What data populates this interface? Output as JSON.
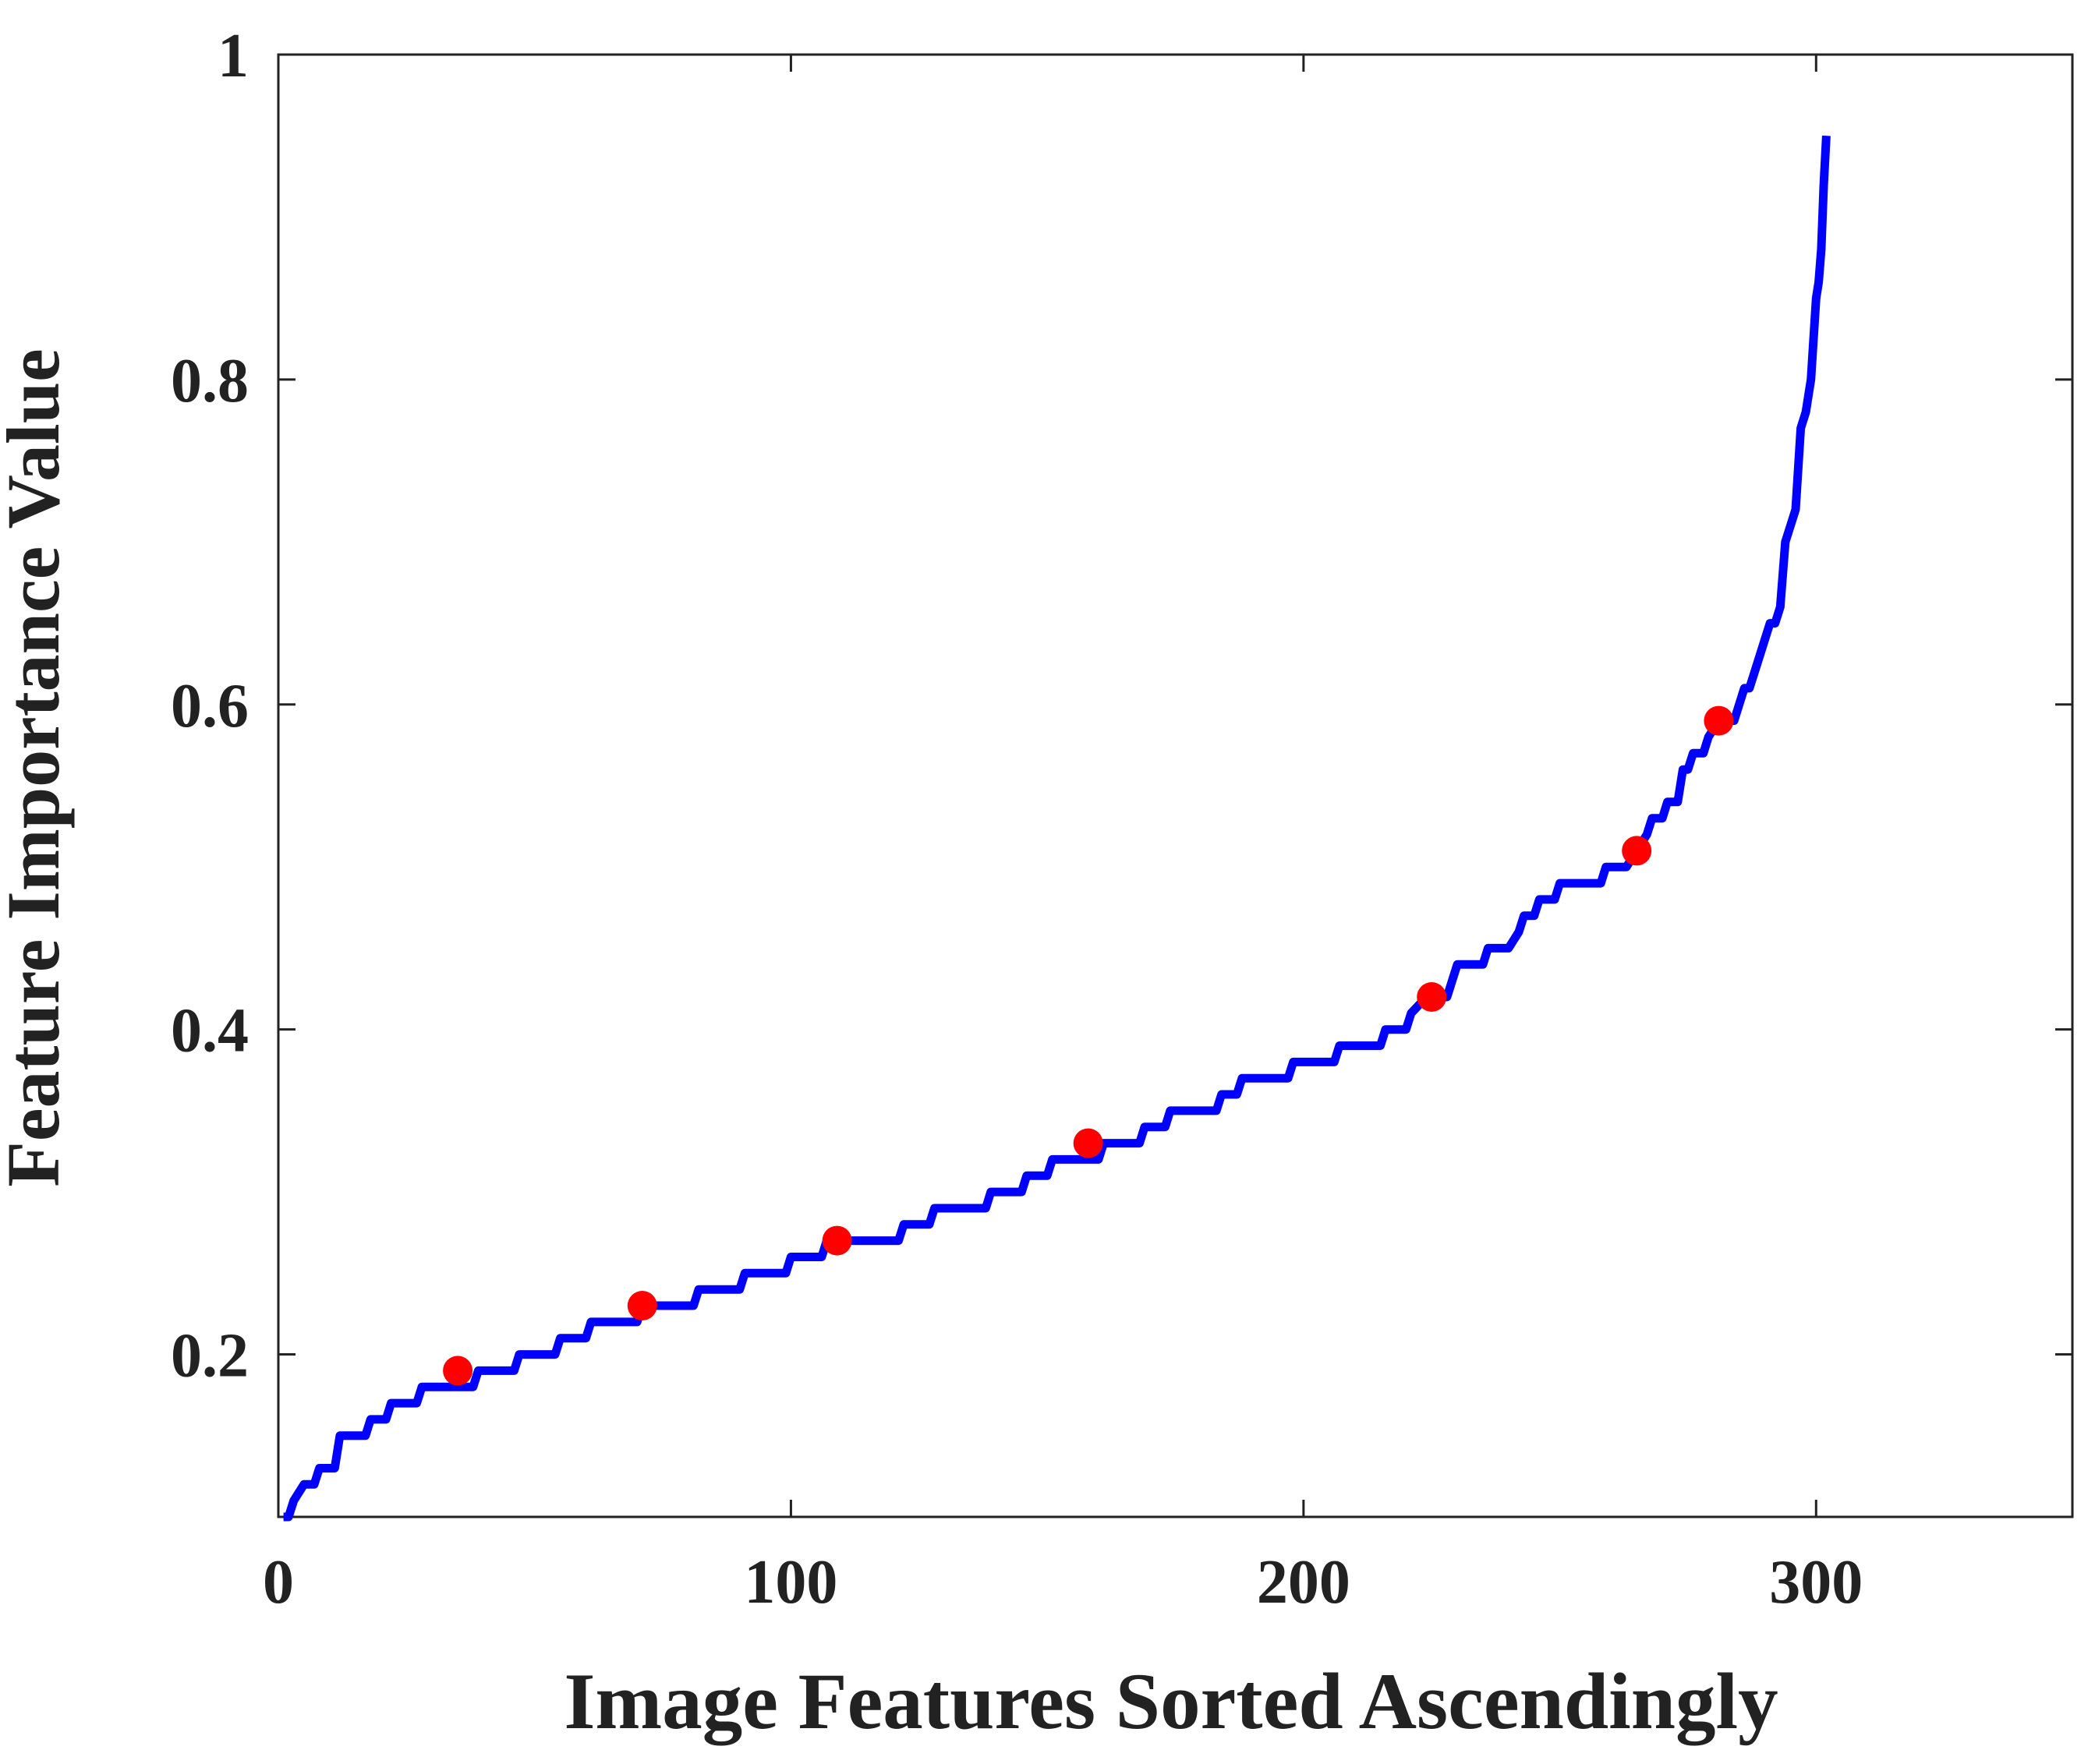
{
  "chart_data": {
    "type": "line",
    "title": "",
    "xlabel": "Image Features Sorted Ascendingly",
    "ylabel": "Feature Importance Value",
    "xlim": [
      0,
      350
    ],
    "ylim": [
      0.1,
      1.0
    ],
    "x_ticks": [
      0,
      100,
      200,
      300
    ],
    "y_ticks": [
      0.2,
      0.4,
      0.6,
      0.8,
      1.0
    ],
    "x_tick_labels": [
      "0",
      "100",
      "200",
      "300"
    ],
    "y_tick_labels": [
      "0.2",
      "0.4",
      "0.6",
      "0.8",
      "1"
    ],
    "grid": false,
    "legend": "none",
    "series": [
      {
        "type": "line",
        "color": "#0000ff",
        "points": [
          [
            1,
            0.1
          ],
          [
            2,
            0.1
          ],
          [
            3,
            0.11
          ],
          [
            5,
            0.12
          ],
          [
            7,
            0.12
          ],
          [
            8,
            0.13
          ],
          [
            11,
            0.13
          ],
          [
            12,
            0.15
          ],
          [
            17,
            0.15
          ],
          [
            18,
            0.16
          ],
          [
            21,
            0.16
          ],
          [
            22,
            0.17
          ],
          [
            27,
            0.17
          ],
          [
            28,
            0.18
          ],
          [
            38,
            0.18
          ],
          [
            39,
            0.19
          ],
          [
            46,
            0.19
          ],
          [
            47,
            0.2
          ],
          [
            54,
            0.2
          ],
          [
            55,
            0.21
          ],
          [
            60,
            0.21
          ],
          [
            61,
            0.22
          ],
          [
            70,
            0.22
          ],
          [
            71,
            0.23
          ],
          [
            81,
            0.23
          ],
          [
            82,
            0.24
          ],
          [
            90,
            0.24
          ],
          [
            91,
            0.25
          ],
          [
            99,
            0.25
          ],
          [
            100,
            0.26
          ],
          [
            106,
            0.26
          ],
          [
            107,
            0.27
          ],
          [
            121,
            0.27
          ],
          [
            122,
            0.28
          ],
          [
            127,
            0.28
          ],
          [
            128,
            0.29
          ],
          [
            138,
            0.29
          ],
          [
            139,
            0.3
          ],
          [
            145,
            0.3
          ],
          [
            146,
            0.31
          ],
          [
            150,
            0.31
          ],
          [
            151,
            0.32
          ],
          [
            160,
            0.32
          ],
          [
            161,
            0.33
          ],
          [
            168,
            0.33
          ],
          [
            169,
            0.34
          ],
          [
            173,
            0.34
          ],
          [
            174,
            0.35
          ],
          [
            183,
            0.35
          ],
          [
            184,
            0.36
          ],
          [
            187,
            0.36
          ],
          [
            188,
            0.37
          ],
          [
            197,
            0.37
          ],
          [
            198,
            0.38
          ],
          [
            206,
            0.38
          ],
          [
            207,
            0.39
          ],
          [
            215,
            0.39
          ],
          [
            216,
            0.4
          ],
          [
            220,
            0.4
          ],
          [
            221,
            0.41
          ],
          [
            224,
            0.42
          ],
          [
            228,
            0.42
          ],
          [
            230,
            0.44
          ],
          [
            235,
            0.44
          ],
          [
            236,
            0.45
          ],
          [
            240,
            0.45
          ],
          [
            242,
            0.46
          ],
          [
            243,
            0.47
          ],
          [
            245,
            0.47
          ],
          [
            246,
            0.48
          ],
          [
            249,
            0.48
          ],
          [
            250,
            0.49
          ],
          [
            258,
            0.49
          ],
          [
            259,
            0.5
          ],
          [
            263,
            0.5
          ],
          [
            265,
            0.51
          ],
          [
            267,
            0.52
          ],
          [
            268,
            0.53
          ],
          [
            270,
            0.53
          ],
          [
            271,
            0.54
          ],
          [
            273,
            0.54
          ],
          [
            274,
            0.56
          ],
          [
            275,
            0.56
          ],
          [
            276,
            0.57
          ],
          [
            278,
            0.57
          ],
          [
            279,
            0.58
          ],
          [
            281,
            0.59
          ],
          [
            284,
            0.59
          ],
          [
            286,
            0.61
          ],
          [
            287,
            0.61
          ],
          [
            289,
            0.63
          ],
          [
            291,
            0.65
          ],
          [
            292,
            0.65
          ],
          [
            293,
            0.66
          ],
          [
            294,
            0.7
          ],
          [
            295,
            0.71
          ],
          [
            296,
            0.72
          ],
          [
            297,
            0.77
          ],
          [
            298,
            0.78
          ],
          [
            299,
            0.8
          ],
          [
            300,
            0.85
          ],
          [
            300.5,
            0.86
          ],
          [
            301,
            0.88
          ],
          [
            301.5,
            0.92
          ],
          [
            302,
            0.95
          ]
        ]
      },
      {
        "type": "scatter",
        "color": "#ff0000",
        "points": [
          [
            35,
            0.19
          ],
          [
            71,
            0.23
          ],
          [
            109,
            0.27
          ],
          [
            158,
            0.33
          ],
          [
            225,
            0.42
          ],
          [
            265,
            0.51
          ],
          [
            281,
            0.59
          ]
        ]
      }
    ]
  }
}
